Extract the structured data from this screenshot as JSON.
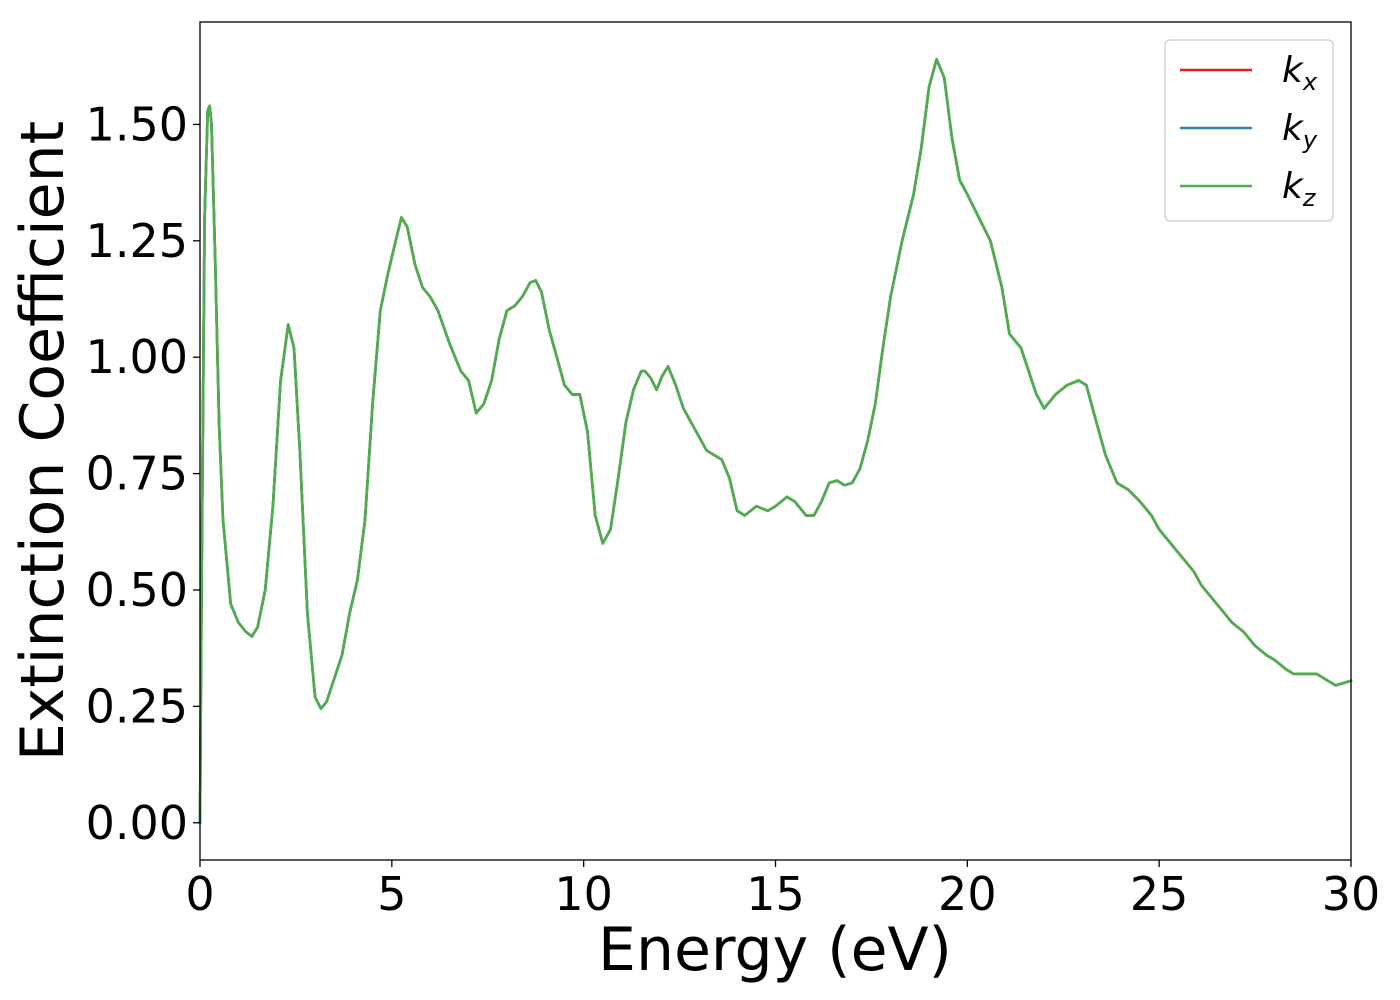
{
  "chart_data": {
    "type": "line",
    "title": "",
    "xlabel": "Energy (eV)",
    "ylabel": "Extinction Coefficient",
    "xlim": [
      0,
      30
    ],
    "ylim": [
      -0.08,
      1.72
    ],
    "xticks": [
      0,
      5,
      10,
      15,
      20,
      25,
      30
    ],
    "xtick_labels": [
      "0",
      "5",
      "10",
      "15",
      "20",
      "25",
      "30"
    ],
    "yticks": [
      0.0,
      0.25,
      0.5,
      0.75,
      1.0,
      1.25,
      1.5
    ],
    "ytick_labels": [
      "0.00",
      "0.25",
      "0.50",
      "0.75",
      "1.00",
      "1.25",
      "1.50"
    ],
    "grid": false,
    "legend_position": "top-right",
    "x": [
      0.0,
      0.05,
      0.12,
      0.2,
      0.25,
      0.3,
      0.4,
      0.5,
      0.6,
      0.8,
      1.0,
      1.2,
      1.35,
      1.5,
      1.7,
      1.9,
      2.1,
      2.3,
      2.45,
      2.6,
      2.8,
      3.0,
      3.15,
      3.3,
      3.5,
      3.7,
      3.9,
      4.1,
      4.3,
      4.5,
      4.7,
      4.9,
      5.1,
      5.25,
      5.4,
      5.6,
      5.8,
      6.0,
      6.2,
      6.5,
      6.8,
      7.0,
      7.2,
      7.4,
      7.6,
      7.8,
      8.0,
      8.2,
      8.4,
      8.6,
      8.75,
      8.9,
      9.1,
      9.3,
      9.5,
      9.7,
      9.9,
      10.1,
      10.3,
      10.5,
      10.7,
      10.9,
      11.1,
      11.3,
      11.5,
      11.6,
      11.75,
      11.9,
      12.05,
      12.2,
      12.4,
      12.6,
      12.8,
      13.0,
      13.2,
      13.4,
      13.6,
      13.8,
      14.0,
      14.2,
      14.5,
      14.8,
      15.0,
      15.3,
      15.5,
      15.8,
      16.0,
      16.2,
      16.4,
      16.6,
      16.8,
      17.0,
      17.2,
      17.4,
      17.6,
      17.8,
      18.0,
      18.3,
      18.6,
      18.8,
      19.0,
      19.2,
      19.4,
      19.6,
      19.8,
      20.0,
      20.3,
      20.6,
      20.9,
      21.1,
      21.4,
      21.6,
      21.8,
      22.0,
      22.3,
      22.6,
      22.9,
      23.1,
      23.3,
      23.6,
      23.9,
      24.2,
      24.5,
      24.8,
      25.0,
      25.3,
      25.6,
      25.9,
      26.1,
      26.3,
      26.6,
      26.9,
      27.2,
      27.5,
      27.8,
      28.0,
      28.3,
      28.5,
      28.8,
      29.1,
      29.4,
      29.6,
      29.8,
      30.0
    ],
    "series": [
      {
        "name": "k_x",
        "color": "#e41a1c",
        "values": [
          0.0,
          0.6,
          1.3,
          1.53,
          1.54,
          1.5,
          1.2,
          0.85,
          0.65,
          0.47,
          0.43,
          0.41,
          0.4,
          0.42,
          0.5,
          0.68,
          0.95,
          1.07,
          1.02,
          0.8,
          0.45,
          0.27,
          0.245,
          0.26,
          0.31,
          0.36,
          0.45,
          0.52,
          0.65,
          0.9,
          1.1,
          1.18,
          1.25,
          1.3,
          1.28,
          1.2,
          1.15,
          1.13,
          1.1,
          1.03,
          0.97,
          0.95,
          0.88,
          0.9,
          0.95,
          1.04,
          1.1,
          1.11,
          1.13,
          1.16,
          1.165,
          1.14,
          1.06,
          1.0,
          0.94,
          0.92,
          0.92,
          0.84,
          0.66,
          0.6,
          0.63,
          0.74,
          0.86,
          0.93,
          0.97,
          0.97,
          0.955,
          0.93,
          0.96,
          0.98,
          0.94,
          0.89,
          0.86,
          0.83,
          0.8,
          0.79,
          0.78,
          0.74,
          0.67,
          0.66,
          0.68,
          0.67,
          0.68,
          0.7,
          0.69,
          0.66,
          0.66,
          0.69,
          0.73,
          0.735,
          0.725,
          0.73,
          0.76,
          0.82,
          0.9,
          1.02,
          1.13,
          1.25,
          1.35,
          1.45,
          1.58,
          1.64,
          1.6,
          1.47,
          1.38,
          1.35,
          1.3,
          1.25,
          1.15,
          1.05,
          1.02,
          0.97,
          0.92,
          0.89,
          0.92,
          0.94,
          0.95,
          0.94,
          0.88,
          0.79,
          0.73,
          0.715,
          0.69,
          0.66,
          0.63,
          0.6,
          0.57,
          0.54,
          0.51,
          0.49,
          0.46,
          0.43,
          0.41,
          0.38,
          0.36,
          0.35,
          0.33,
          0.32,
          0.32,
          0.32,
          0.305,
          0.295,
          0.3,
          0.305
        ]
      },
      {
        "name": "k_y",
        "color": "#377eb8",
        "values": [
          0.0,
          0.6,
          1.3,
          1.53,
          1.54,
          1.5,
          1.2,
          0.85,
          0.65,
          0.47,
          0.43,
          0.41,
          0.4,
          0.42,
          0.5,
          0.68,
          0.95,
          1.07,
          1.02,
          0.8,
          0.45,
          0.27,
          0.245,
          0.26,
          0.31,
          0.36,
          0.45,
          0.52,
          0.65,
          0.9,
          1.1,
          1.18,
          1.25,
          1.3,
          1.28,
          1.2,
          1.15,
          1.13,
          1.1,
          1.03,
          0.97,
          0.95,
          0.88,
          0.9,
          0.95,
          1.04,
          1.1,
          1.11,
          1.13,
          1.16,
          1.165,
          1.14,
          1.06,
          1.0,
          0.94,
          0.92,
          0.92,
          0.84,
          0.66,
          0.6,
          0.63,
          0.74,
          0.86,
          0.93,
          0.97,
          0.97,
          0.955,
          0.93,
          0.96,
          0.98,
          0.94,
          0.89,
          0.86,
          0.83,
          0.8,
          0.79,
          0.78,
          0.74,
          0.67,
          0.66,
          0.68,
          0.67,
          0.68,
          0.7,
          0.69,
          0.66,
          0.66,
          0.69,
          0.73,
          0.735,
          0.725,
          0.73,
          0.76,
          0.82,
          0.9,
          1.02,
          1.13,
          1.25,
          1.35,
          1.45,
          1.58,
          1.64,
          1.6,
          1.47,
          1.38,
          1.35,
          1.3,
          1.25,
          1.15,
          1.05,
          1.02,
          0.97,
          0.92,
          0.89,
          0.92,
          0.94,
          0.95,
          0.94,
          0.88,
          0.79,
          0.73,
          0.715,
          0.69,
          0.66,
          0.63,
          0.6,
          0.57,
          0.54,
          0.51,
          0.49,
          0.46,
          0.43,
          0.41,
          0.38,
          0.36,
          0.35,
          0.33,
          0.32,
          0.32,
          0.32,
          0.305,
          0.295,
          0.3,
          0.305
        ]
      },
      {
        "name": "k_z",
        "color": "#4daf4a",
        "values": [
          0.0,
          0.6,
          1.3,
          1.53,
          1.54,
          1.5,
          1.2,
          0.85,
          0.65,
          0.47,
          0.43,
          0.41,
          0.4,
          0.42,
          0.5,
          0.68,
          0.95,
          1.07,
          1.02,
          0.8,
          0.45,
          0.27,
          0.245,
          0.26,
          0.31,
          0.36,
          0.45,
          0.52,
          0.65,
          0.9,
          1.1,
          1.18,
          1.25,
          1.3,
          1.28,
          1.2,
          1.15,
          1.13,
          1.1,
          1.03,
          0.97,
          0.95,
          0.88,
          0.9,
          0.95,
          1.04,
          1.1,
          1.11,
          1.13,
          1.16,
          1.165,
          1.14,
          1.06,
          1.0,
          0.94,
          0.92,
          0.92,
          0.84,
          0.66,
          0.6,
          0.63,
          0.74,
          0.86,
          0.93,
          0.97,
          0.97,
          0.955,
          0.93,
          0.96,
          0.98,
          0.94,
          0.89,
          0.86,
          0.83,
          0.8,
          0.79,
          0.78,
          0.74,
          0.67,
          0.66,
          0.68,
          0.67,
          0.68,
          0.7,
          0.69,
          0.66,
          0.66,
          0.69,
          0.73,
          0.735,
          0.725,
          0.73,
          0.76,
          0.82,
          0.9,
          1.02,
          1.13,
          1.25,
          1.35,
          1.45,
          1.58,
          1.64,
          1.6,
          1.47,
          1.38,
          1.35,
          1.3,
          1.25,
          1.15,
          1.05,
          1.02,
          0.97,
          0.92,
          0.89,
          0.92,
          0.94,
          0.95,
          0.94,
          0.88,
          0.79,
          0.73,
          0.715,
          0.69,
          0.66,
          0.63,
          0.6,
          0.57,
          0.54,
          0.51,
          0.49,
          0.46,
          0.43,
          0.41,
          0.38,
          0.36,
          0.35,
          0.33,
          0.32,
          0.32,
          0.32,
          0.305,
          0.295,
          0.3,
          0.305
        ]
      }
    ],
    "legend": [
      {
        "base": "k",
        "sub": "x",
        "color": "#e41a1c"
      },
      {
        "base": "k",
        "sub": "y",
        "color": "#377eb8"
      },
      {
        "base": "k",
        "sub": "z",
        "color": "#4daf4a"
      }
    ]
  }
}
